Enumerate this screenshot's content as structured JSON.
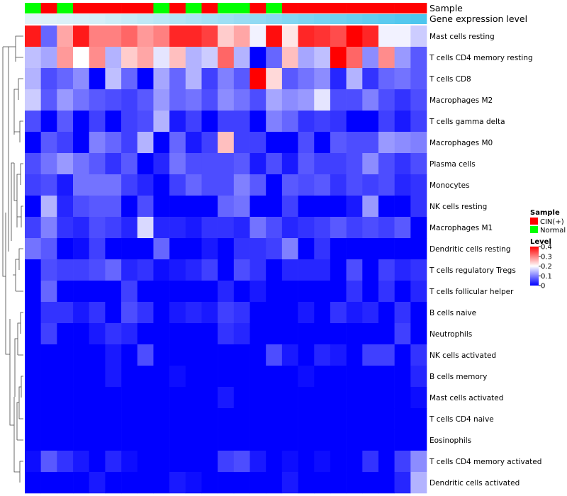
{
  "chart_data": {
    "type": "heatmap",
    "annotation_rows": [
      {
        "name": "Sample",
        "values": [
          "Normal",
          "CIN(+)",
          "Normal",
          "CIN(+)",
          "CIN(+)",
          "CIN(+)",
          "CIN(+)",
          "CIN(+)",
          "Normal",
          "CIN(+)",
          "Normal",
          "CIN(+)",
          "Normal",
          "Normal",
          "CIN(+)",
          "Normal",
          "CIN(+)",
          "CIN(+)",
          "CIN(+)",
          "CIN(+)",
          "CIN(+)",
          "CIN(+)",
          "CIN(+)",
          "CIN(+)",
          "CIN(+)"
        ]
      },
      {
        "name": "Gene expression level",
        "values": [
          0.02,
          0.03,
          0.04,
          0.05,
          0.06,
          0.08,
          0.1,
          0.12,
          0.14,
          0.16,
          0.18,
          0.2,
          0.22,
          0.24,
          0.26,
          0.28,
          0.3,
          0.32,
          0.34,
          0.36,
          0.38,
          0.4,
          0.42,
          0.44,
          0.46
        ]
      }
    ],
    "rows": [
      "Mast cells resting",
      "T cells CD4 memory resting",
      "T cells CD8",
      "Macrophages M2",
      "T cells gamma delta",
      "Macrophages M0",
      "Plasma cells",
      "Monocytes",
      "NK cells resting",
      "Macrophages M1",
      "Dendritic cells resting",
      "T cells regulatory  Tregs",
      "T cells follicular helper",
      "B cells naive",
      "Neutrophils",
      "NK cells activated",
      "B cells memory",
      "Mast cells activated",
      "T cells CD4 naive",
      "Eosinophils",
      "T cells CD4 memory activated",
      "Dendritic cells activated"
    ],
    "values": [
      [
        0.38,
        0.08,
        0.27,
        0.38,
        0.3,
        0.3,
        0.32,
        0.28,
        0.3,
        0.37,
        0.37,
        0.35,
        0.24,
        0.27,
        0.19,
        0.39,
        0.22,
        0.37,
        0.36,
        0.34,
        0.4,
        0.37,
        0.19,
        0.19,
        0.16
      ],
      [
        0.15,
        0.13,
        0.28,
        0.2,
        0.29,
        0.14,
        0.24,
        0.27,
        0.18,
        0.25,
        0.14,
        0.16,
        0.32,
        0.14,
        0.0,
        0.08,
        0.25,
        0.13,
        0.15,
        0.4,
        0.32,
        0.11,
        0.29,
        0.12,
        0.07
      ],
      [
        0.14,
        0.06,
        0.08,
        0.11,
        0.0,
        0.15,
        0.08,
        0.0,
        0.13,
        0.08,
        0.14,
        0.05,
        0.1,
        0.07,
        0.4,
        0.23,
        0.07,
        0.09,
        0.11,
        0.03,
        0.14,
        0.04,
        0.08,
        0.09,
        0.07
      ],
      [
        0.16,
        0.07,
        0.12,
        0.09,
        0.07,
        0.06,
        0.05,
        0.07,
        0.12,
        0.08,
        0.09,
        0.06,
        0.11,
        0.09,
        0.06,
        0.13,
        0.11,
        0.12,
        0.18,
        0.06,
        0.06,
        0.1,
        0.06,
        0.04,
        0.06
      ],
      [
        0.06,
        0.0,
        0.07,
        0.0,
        0.05,
        0.0,
        0.05,
        0.06,
        0.14,
        0.02,
        0.05,
        0.0,
        0.05,
        0.05,
        0.0,
        0.1,
        0.08,
        0.04,
        0.05,
        0.04,
        0.0,
        0.0,
        0.05,
        0.02,
        0.05
      ],
      [
        0.0,
        0.07,
        0.05,
        0.0,
        0.1,
        0.08,
        0.05,
        0.14,
        0.0,
        0.08,
        0.02,
        0.05,
        0.25,
        0.05,
        0.05,
        0.0,
        0.0,
        0.06,
        0.0,
        0.07,
        0.06,
        0.06,
        0.12,
        0.11,
        0.1
      ],
      [
        0.06,
        0.09,
        0.12,
        0.09,
        0.07,
        0.04,
        0.07,
        0.0,
        0.03,
        0.09,
        0.06,
        0.06,
        0.06,
        0.07,
        0.02,
        0.06,
        0.02,
        0.07,
        0.05,
        0.05,
        0.06,
        0.11,
        0.06,
        0.04,
        0.06
      ],
      [
        0.05,
        0.06,
        0.02,
        0.09,
        0.09,
        0.09,
        0.05,
        0.03,
        0.0,
        0.05,
        0.08,
        0.06,
        0.06,
        0.1,
        0.07,
        0.0,
        0.07,
        0.06,
        0.07,
        0.04,
        0.06,
        0.05,
        0.06,
        0.03,
        0.04
      ],
      [
        0.0,
        0.14,
        0.03,
        0.06,
        0.07,
        0.07,
        0.0,
        0.06,
        0.0,
        0.0,
        0.0,
        0.0,
        0.08,
        0.09,
        0.0,
        0.0,
        0.05,
        0.0,
        0.0,
        0.0,
        0.02,
        0.12,
        0.0,
        0.0,
        0.04
      ],
      [
        0.05,
        0.1,
        0.04,
        0.03,
        0.06,
        0.05,
        0.03,
        0.17,
        0.03,
        0.03,
        0.02,
        0.04,
        0.04,
        0.03,
        0.09,
        0.06,
        0.03,
        0.04,
        0.05,
        0.07,
        0.05,
        0.06,
        0.05,
        0.07,
        0.0
      ],
      [
        0.09,
        0.07,
        0.0,
        0.01,
        0.05,
        0.0,
        0.0,
        0.0,
        0.08,
        0.0,
        0.0,
        0.02,
        0.0,
        0.04,
        0.04,
        0.05,
        0.1,
        0.0,
        0.04,
        0.0,
        0.0,
        0.0,
        0.0,
        0.0,
        0.0
      ],
      [
        0.0,
        0.06,
        0.05,
        0.05,
        0.06,
        0.08,
        0.03,
        0.04,
        0.01,
        0.02,
        0.03,
        0.05,
        0.0,
        0.06,
        0.04,
        0.0,
        0.03,
        0.03,
        0.03,
        0.0,
        0.06,
        0.0,
        0.05,
        0.03,
        0.04
      ],
      [
        0.0,
        0.08,
        0.0,
        0.0,
        0.0,
        0.0,
        0.05,
        0.0,
        0.0,
        0.0,
        0.0,
        0.0,
        0.03,
        0.0,
        0.02,
        0.0,
        0.0,
        0.0,
        0.0,
        0.0,
        0.04,
        0.0,
        0.04,
        0.0,
        0.03
      ],
      [
        0.0,
        0.04,
        0.04,
        0.02,
        0.04,
        0.0,
        0.06,
        0.04,
        0.0,
        0.02,
        0.03,
        0.02,
        0.05,
        0.04,
        0.0,
        0.0,
        0.0,
        0.02,
        0.0,
        0.04,
        0.02,
        0.03,
        0.0,
        0.04,
        0.0
      ],
      [
        0.0,
        0.05,
        0.0,
        0.0,
        0.02,
        0.04,
        0.03,
        0.0,
        0.0,
        0.0,
        0.0,
        0.0,
        0.04,
        0.03,
        0.0,
        0.0,
        0.0,
        0.0,
        0.0,
        0.0,
        0.0,
        0.0,
        0.0,
        0.05,
        0.0
      ],
      [
        0.0,
        0.0,
        0.0,
        0.0,
        0.0,
        0.02,
        0.0,
        0.06,
        0.0,
        0.0,
        0.0,
        0.0,
        0.0,
        0.0,
        0.0,
        0.06,
        0.02,
        0.0,
        0.03,
        0.02,
        0.0,
        0.05,
        0.05,
        0.0,
        0.04
      ],
      [
        0.0,
        0.0,
        0.0,
        0.0,
        0.0,
        0.02,
        0.0,
        0.0,
        0.0,
        0.01,
        0.0,
        0.0,
        0.0,
        0.0,
        0.0,
        0.0,
        0.0,
        0.01,
        0.0,
        0.0,
        0.0,
        0.0,
        0.0,
        0.0,
        0.03
      ],
      [
        0.0,
        0.0,
        0.0,
        0.0,
        0.0,
        0.0,
        0.0,
        0.0,
        0.0,
        0.0,
        0.0,
        0.0,
        0.02,
        0.0,
        0.0,
        0.0,
        0.0,
        0.0,
        0.0,
        0.0,
        0.0,
        0.0,
        0.0,
        0.0,
        0.01
      ],
      [
        0.0,
        0.0,
        0.0,
        0.0,
        0.0,
        0.0,
        0.0,
        0.0,
        0.0,
        0.0,
        0.0,
        0.0,
        0.0,
        0.0,
        0.0,
        0.0,
        0.0,
        0.0,
        0.0,
        0.0,
        0.0,
        0.0,
        0.0,
        0.0,
        0.0
      ],
      [
        0.0,
        0.0,
        0.0,
        0.0,
        0.0,
        0.0,
        0.0,
        0.0,
        0.0,
        0.0,
        0.0,
        0.0,
        0.0,
        0.0,
        0.0,
        0.0,
        0.0,
        0.0,
        0.0,
        0.0,
        0.0,
        0.0,
        0.0,
        0.0,
        0.0
      ],
      [
        0.01,
        0.07,
        0.04,
        0.02,
        0.0,
        0.03,
        0.01,
        0.0,
        0.0,
        0.0,
        0.0,
        0.0,
        0.05,
        0.06,
        0.02,
        0.0,
        0.01,
        0.0,
        0.01,
        0.0,
        0.0,
        0.04,
        0.0,
        0.05,
        0.11
      ],
      [
        0.0,
        0.0,
        0.0,
        0.0,
        0.02,
        0.0,
        0.0,
        0.0,
        0.0,
        0.02,
        0.01,
        0.0,
        0.0,
        0.0,
        0.0,
        0.0,
        0.02,
        0.0,
        0.0,
        0.0,
        0.0,
        0.0,
        0.0,
        0.03,
        0.14
      ]
    ],
    "legend": {
      "sample_title": "Sample",
      "sample_items": [
        {
          "label": "CIN(+)",
          "color": "#ff0000"
        },
        {
          "label": "Normal",
          "color": "#00ff00"
        }
      ],
      "level_title": "Level",
      "level_ticks": [
        "0.4",
        "0.3",
        "0.2",
        "0.1",
        "0"
      ],
      "level_values": [
        0.4,
        0.3,
        0.2,
        0.1,
        0
      ]
    },
    "colors": {
      "low": "#0000ff",
      "mid": "#ffffff",
      "high": "#ff0000",
      "mid_value": 0.2,
      "max_value": 0.4,
      "ann_low": "#e9f5f9",
      "ann_high": "#4dc6ee"
    },
    "dendrogram": "hierarchical clustering of rows"
  }
}
